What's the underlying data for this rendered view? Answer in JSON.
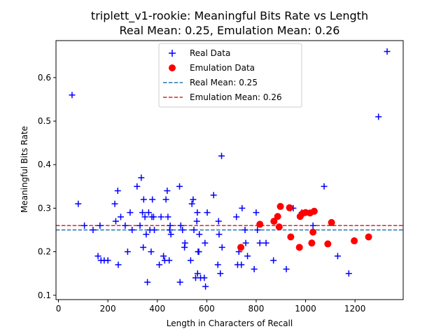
{
  "chart_data": {
    "type": "scatter",
    "title_line1": "triplett_v1-rookie: Meaningful Bits Rate vs Length",
    "title_line2": "Real Mean: 0.25, Emulation Mean: 0.26",
    "xlabel": "Length in Characters of Recall",
    "ylabel": "Meaningful Bits Rate",
    "xlim": [
      -10,
      1395
    ],
    "ylim": [
      0.09,
      0.685
    ],
    "xticks": [
      0,
      200,
      400,
      600,
      800,
      1000,
      1200
    ],
    "yticks": [
      0.1,
      0.2,
      0.3,
      0.4,
      0.5,
      0.6
    ],
    "grid": false,
    "legend_position": "top-center",
    "legend": {
      "real_data": "Real Data",
      "emulation_data": "Emulation Data",
      "real_mean": "Real Mean: 0.25",
      "emulation_mean": "Emulation Mean: 0.26"
    },
    "real_mean": 0.25,
    "emulation_mean": 0.26,
    "colors": {
      "real_data": "#0000ff",
      "emulation_data": "#ff0000",
      "real_mean": "#1f77b4",
      "emulation_mean": "#d62728"
    },
    "series": [
      {
        "name": "Real Data",
        "marker": "plus",
        "points": [
          [
            55,
            0.56
          ],
          [
            80,
            0.31
          ],
          [
            105,
            0.26
          ],
          [
            140,
            0.25
          ],
          [
            160,
            0.19
          ],
          [
            168,
            0.26
          ],
          [
            172,
            0.18
          ],
          [
            185,
            0.18
          ],
          [
            200,
            0.18
          ],
          [
            228,
            0.31
          ],
          [
            232,
            0.27
          ],
          [
            240,
            0.34
          ],
          [
            242,
            0.17
          ],
          [
            252,
            0.28
          ],
          [
            270,
            0.26
          ],
          [
            280,
            0.2
          ],
          [
            290,
            0.29
          ],
          [
            298,
            0.25
          ],
          [
            318,
            0.35
          ],
          [
            330,
            0.26
          ],
          [
            335,
            0.37
          ],
          [
            340,
            0.29
          ],
          [
            343,
            0.21
          ],
          [
            345,
            0.32
          ],
          [
            350,
            0.28
          ],
          [
            355,
            0.24
          ],
          [
            360,
            0.13
          ],
          [
            365,
            0.29
          ],
          [
            370,
            0.25
          ],
          [
            375,
            0.2
          ],
          [
            378,
            0.28
          ],
          [
            380,
            0.32
          ],
          [
            385,
            0.28
          ],
          [
            388,
            0.25
          ],
          [
            408,
            0.17
          ],
          [
            415,
            0.28
          ],
          [
            425,
            0.19
          ],
          [
            430,
            0.18
          ],
          [
            435,
            0.32
          ],
          [
            440,
            0.34
          ],
          [
            443,
            0.28
          ],
          [
            448,
            0.18
          ],
          [
            450,
            0.25
          ],
          [
            452,
            0.26
          ],
          [
            455,
            0.24
          ],
          [
            490,
            0.35
          ],
          [
            492,
            0.13
          ],
          [
            495,
            0.26
          ],
          [
            502,
            0.25
          ],
          [
            510,
            0.21
          ],
          [
            512,
            0.22
          ],
          [
            535,
            0.18
          ],
          [
            540,
            0.31
          ],
          [
            545,
            0.32
          ],
          [
            548,
            0.25
          ],
          [
            555,
            0.14
          ],
          [
            560,
            0.27
          ],
          [
            562,
            0.29
          ],
          [
            563,
            0.15
          ],
          [
            565,
            0.2
          ],
          [
            568,
            0.2
          ],
          [
            570,
            0.24
          ],
          [
            575,
            0.14
          ],
          [
            590,
            0.14
          ],
          [
            593,
            0.22
          ],
          [
            595,
            0.12
          ],
          [
            602,
            0.29
          ],
          [
            628,
            0.33
          ],
          [
            645,
            0.17
          ],
          [
            648,
            0.27
          ],
          [
            650,
            0.24
          ],
          [
            655,
            0.15
          ],
          [
            660,
            0.42
          ],
          [
            662,
            0.21
          ],
          [
            720,
            0.28
          ],
          [
            725,
            0.17
          ],
          [
            730,
            0.2
          ],
          [
            740,
            0.17
          ],
          [
            743,
            0.3
          ],
          [
            755,
            0.25
          ],
          [
            758,
            0.22
          ],
          [
            765,
            0.19
          ],
          [
            792,
            0.16
          ],
          [
            800,
            0.29
          ],
          [
            805,
            0.25
          ],
          [
            815,
            0.22
          ],
          [
            840,
            0.22
          ],
          [
            870,
            0.18
          ],
          [
            922,
            0.16
          ],
          [
            940,
            0.3
          ],
          [
            950,
            0.3
          ],
          [
            985,
            0.29
          ],
          [
            1030,
            0.26
          ],
          [
            1075,
            0.35
          ],
          [
            1130,
            0.19
          ],
          [
            1175,
            0.15
          ],
          [
            1295,
            0.51
          ],
          [
            1330,
            0.66
          ]
        ]
      },
      {
        "name": "Emulation Data",
        "marker": "circle",
        "points": [
          [
            738,
            0.21
          ],
          [
            815,
            0.263
          ],
          [
            872,
            0.27
          ],
          [
            887,
            0.281
          ],
          [
            893,
            0.257
          ],
          [
            898,
            0.304
          ],
          [
            935,
            0.301
          ],
          [
            940,
            0.234
          ],
          [
            975,
            0.21
          ],
          [
            978,
            0.281
          ],
          [
            988,
            0.288
          ],
          [
            1000,
            0.29
          ],
          [
            1018,
            0.289
          ],
          [
            1025,
            0.22
          ],
          [
            1030,
            0.245
          ],
          [
            1035,
            0.293
          ],
          [
            1090,
            0.218
          ],
          [
            1105,
            0.267
          ],
          [
            1197,
            0.225
          ],
          [
            1255,
            0.234
          ]
        ]
      }
    ]
  }
}
